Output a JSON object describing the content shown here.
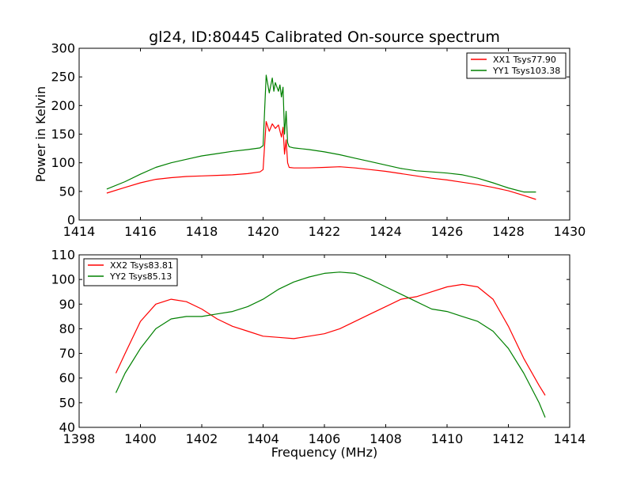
{
  "title": "gl24, ID:80445 Calibrated On-source spectrum",
  "chart_data": [
    {
      "type": "line",
      "ylabel": "Power in Kelvin",
      "xlabel": "",
      "xlim": [
        1414,
        1430
      ],
      "ylim": [
        0,
        300
      ],
      "xticks": [
        1414,
        1416,
        1418,
        1420,
        1422,
        1424,
        1426,
        1428,
        1430
      ],
      "yticks": [
        0,
        50,
        100,
        150,
        200,
        250,
        300
      ],
      "legend_position": "top-right",
      "series": [
        {
          "name": "XX1 Tsys77.90",
          "color": "#ff0000",
          "x": [
            1414.9,
            1415.5,
            1416.0,
            1416.5,
            1417.0,
            1417.5,
            1418.0,
            1418.5,
            1419.0,
            1419.5,
            1419.9,
            1420.0,
            1420.05,
            1420.1,
            1420.2,
            1420.3,
            1420.4,
            1420.5,
            1420.6,
            1420.65,
            1420.7,
            1420.75,
            1420.8,
            1420.85,
            1421.0,
            1421.5,
            1422.0,
            1422.5,
            1423.0,
            1423.5,
            1424.0,
            1424.5,
            1425.0,
            1425.5,
            1426.0,
            1426.5,
            1427.0,
            1427.5,
            1428.0,
            1428.5,
            1428.9
          ],
          "y": [
            47,
            57,
            65,
            71,
            74,
            76,
            77,
            78,
            79,
            81,
            84,
            88,
            130,
            172,
            155,
            168,
            160,
            166,
            145,
            162,
            115,
            140,
            100,
            92,
            91,
            91,
            92,
            93,
            91,
            88,
            85,
            81,
            77,
            73,
            70,
            66,
            62,
            57,
            51,
            43,
            36
          ]
        },
        {
          "name": "YY1 Tsys103.38",
          "color": "#008000",
          "x": [
            1414.9,
            1415.5,
            1416.0,
            1416.5,
            1417.0,
            1417.5,
            1418.0,
            1418.5,
            1419.0,
            1419.5,
            1419.9,
            1420.0,
            1420.05,
            1420.1,
            1420.2,
            1420.3,
            1420.35,
            1420.4,
            1420.5,
            1420.55,
            1420.6,
            1420.65,
            1420.7,
            1420.75,
            1420.8,
            1420.85,
            1421.0,
            1421.5,
            1422.0,
            1422.5,
            1423.0,
            1423.5,
            1424.0,
            1424.5,
            1425.0,
            1425.5,
            1426.0,
            1426.5,
            1427.0,
            1427.5,
            1428.0,
            1428.5,
            1428.9
          ],
          "y": [
            54,
            67,
            80,
            92,
            100,
            106,
            112,
            116,
            120,
            123,
            126,
            130,
            190,
            253,
            222,
            248,
            225,
            240,
            225,
            236,
            215,
            232,
            150,
            190,
            135,
            128,
            126,
            123,
            119,
            114,
            108,
            102,
            96,
            90,
            86,
            84,
            82,
            79,
            73,
            65,
            56,
            49,
            49
          ]
        }
      ]
    },
    {
      "type": "line",
      "ylabel": "",
      "xlabel": "Frequency (MHz)",
      "xlim": [
        1398,
        1414
      ],
      "ylim": [
        40,
        110
      ],
      "xticks": [
        1398,
        1400,
        1402,
        1404,
        1406,
        1408,
        1410,
        1412,
        1414
      ],
      "yticks": [
        40,
        50,
        60,
        70,
        80,
        90,
        100,
        110
      ],
      "legend_position": "top-left",
      "series": [
        {
          "name": "XX2 Tsys83.81",
          "color": "#ff0000",
          "x": [
            1399.2,
            1399.5,
            1400.0,
            1400.5,
            1401.0,
            1401.5,
            1402.0,
            1402.5,
            1403.0,
            1403.5,
            1404.0,
            1404.5,
            1405.0,
            1405.5,
            1406.0,
            1406.5,
            1407.0,
            1407.5,
            1408.0,
            1408.5,
            1409.0,
            1409.5,
            1410.0,
            1410.5,
            1411.0,
            1411.5,
            1412.0,
            1412.5,
            1413.0,
            1413.2
          ],
          "y": [
            62,
            70,
            83,
            90,
            92,
            91,
            88,
            84,
            81,
            79,
            77,
            76.5,
            76,
            77,
            78,
            80,
            83,
            86,
            89,
            92,
            93,
            95,
            97,
            98,
            97,
            92,
            81,
            68,
            57,
            53
          ]
        },
        {
          "name": "YY2 Tsys85.13",
          "color": "#008000",
          "x": [
            1399.2,
            1399.5,
            1400.0,
            1400.5,
            1401.0,
            1401.5,
            1402.0,
            1402.5,
            1403.0,
            1403.5,
            1404.0,
            1404.5,
            1405.0,
            1405.5,
            1406.0,
            1406.5,
            1407.0,
            1407.5,
            1408.0,
            1408.5,
            1409.0,
            1409.5,
            1410.0,
            1410.5,
            1411.0,
            1411.5,
            1412.0,
            1412.5,
            1413.0,
            1413.2
          ],
          "y": [
            54,
            62,
            72,
            80,
            84,
            85,
            85,
            86,
            87,
            89,
            92,
            96,
            99,
            101,
            102.5,
            103,
            102.5,
            100,
            97,
            94,
            91,
            88,
            87,
            85,
            83,
            79,
            72,
            62,
            50,
            44
          ]
        }
      ]
    }
  ]
}
